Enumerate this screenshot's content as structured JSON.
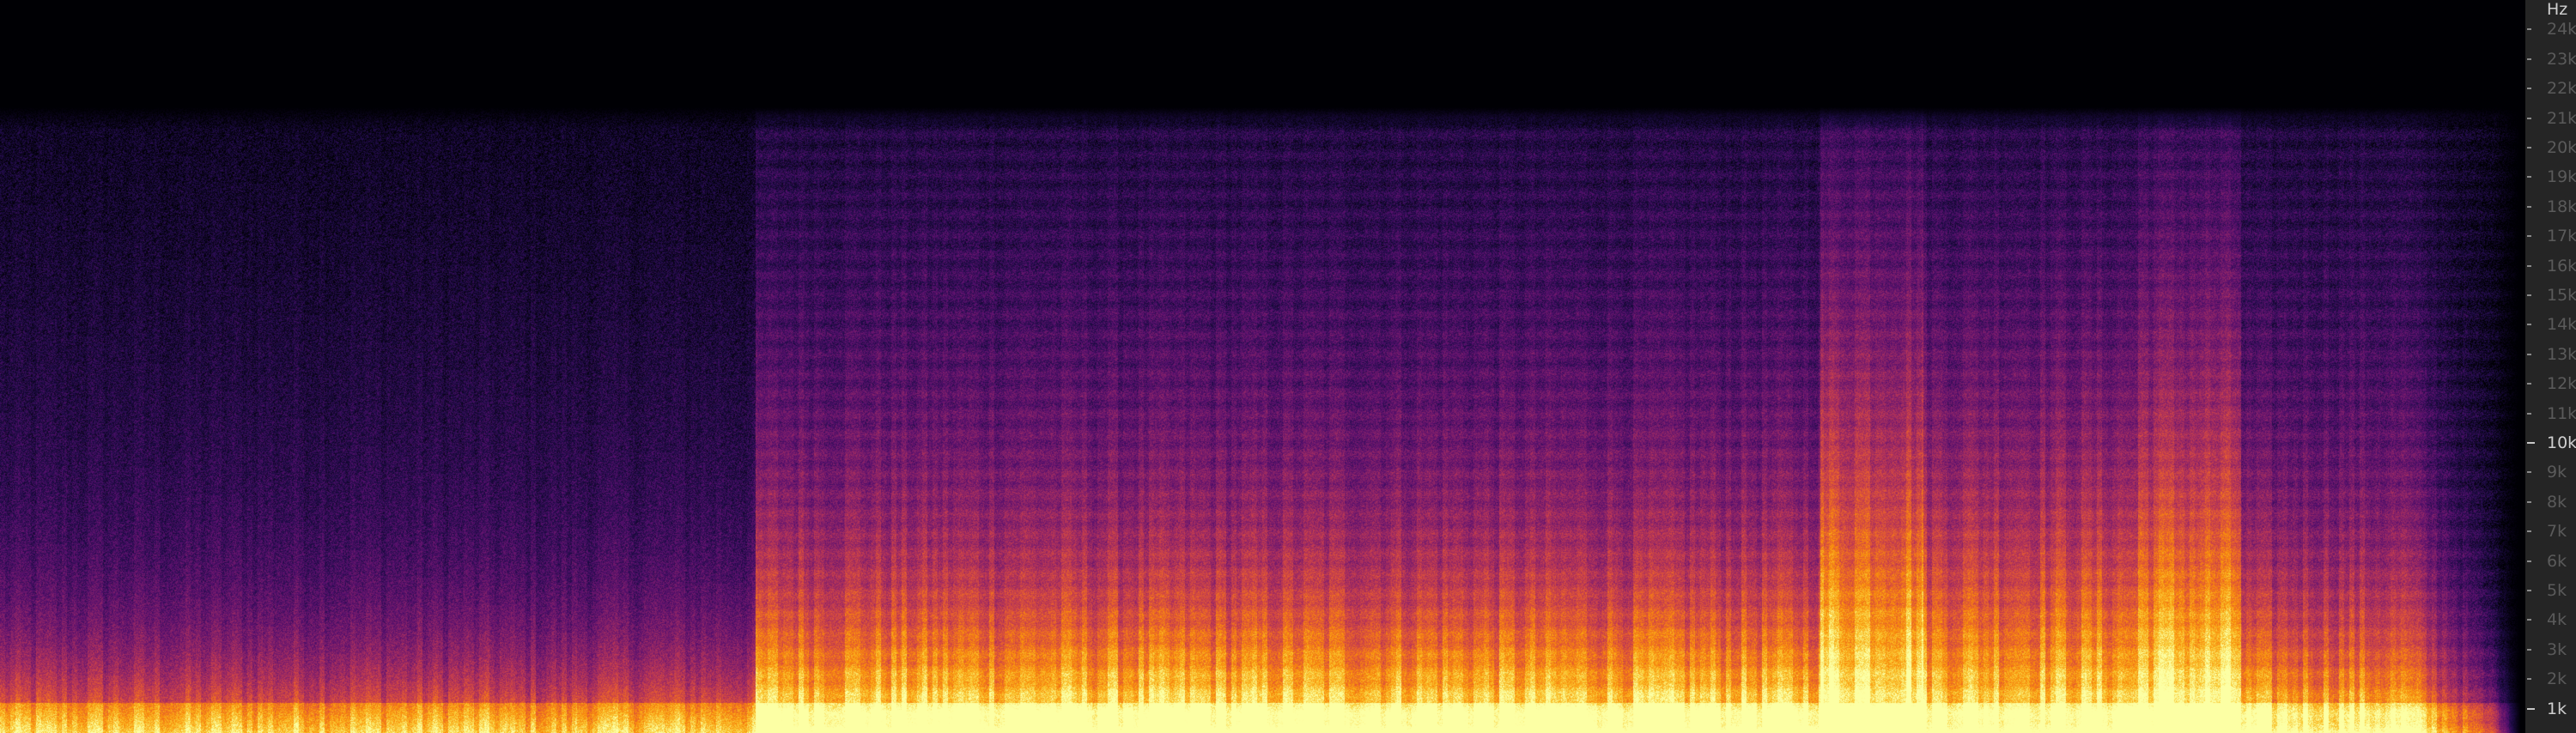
{
  "chart_data": {
    "type": "heatmap",
    "subtype": "spectrogram",
    "colormap": "inferno",
    "ylabel": "Hz",
    "ylim": [
      0,
      24500
    ],
    "yticks": [
      {
        "value": 24000,
        "label": "24k"
      },
      {
        "value": 23000,
        "label": "23k"
      },
      {
        "value": 22000,
        "label": "22k"
      },
      {
        "value": 21000,
        "label": "21k"
      },
      {
        "value": 20000,
        "label": "20k"
      },
      {
        "value": 19000,
        "label": "19k"
      },
      {
        "value": 18000,
        "label": "18k"
      },
      {
        "value": 17000,
        "label": "17k"
      },
      {
        "value": 16000,
        "label": "16k"
      },
      {
        "value": 15000,
        "label": "15k"
      },
      {
        "value": 14000,
        "label": "14k"
      },
      {
        "value": 13000,
        "label": "13k"
      },
      {
        "value": 12000,
        "label": "12k"
      },
      {
        "value": 11000,
        "label": "11k"
      },
      {
        "value": 10000,
        "label": "10k",
        "major": true
      },
      {
        "value": 9000,
        "label": "9k"
      },
      {
        "value": 8000,
        "label": "8k"
      },
      {
        "value": 7000,
        "label": "7k"
      },
      {
        "value": 6000,
        "label": "6k"
      },
      {
        "value": 5000,
        "label": "5k"
      },
      {
        "value": 4000,
        "label": "4k"
      },
      {
        "value": 3000,
        "label": "3k"
      },
      {
        "value": 2000,
        "label": "2k"
      },
      {
        "value": 1000,
        "label": "1k",
        "major": true
      }
    ],
    "content_cutoff_hz": 21000,
    "grid": false,
    "legend": "none"
  }
}
